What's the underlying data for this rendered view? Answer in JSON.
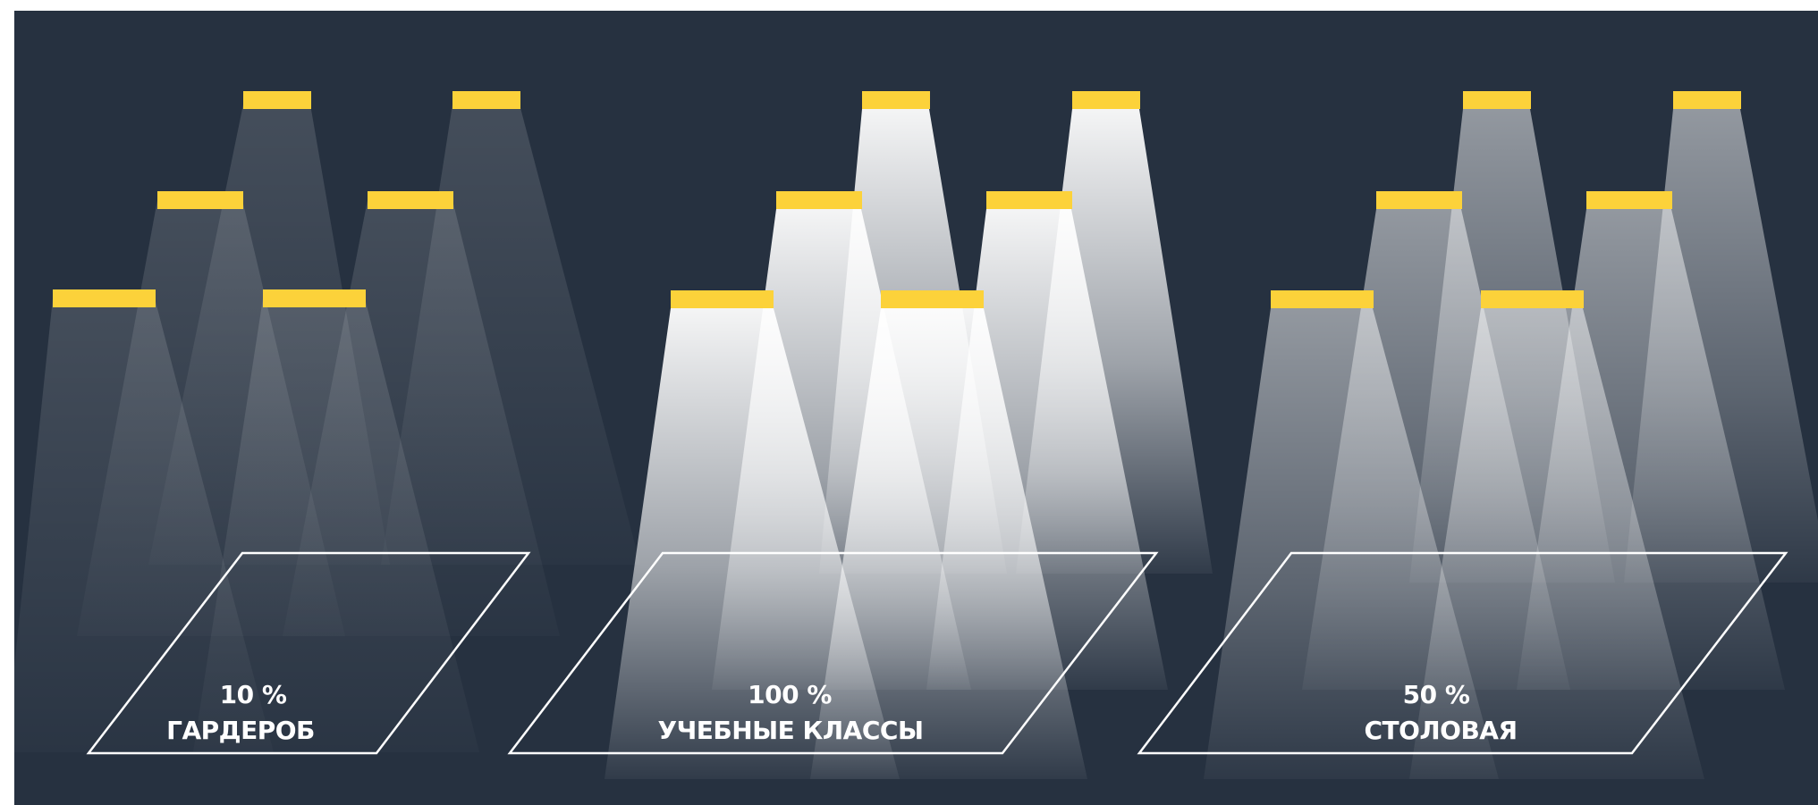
{
  "colors": {
    "background": "#263140",
    "lamp": "#FCD23A",
    "floor_outline": "#ffffff",
    "beam": "#ffffff"
  },
  "zones": [
    {
      "id": "gardrob",
      "percent_label": "10 %",
      "name": "ГАРДЕРОБ",
      "brightness": 0.1
    },
    {
      "id": "classes",
      "percent_label": "100 %",
      "name": "УЧЕБНЫЕ КЛАССЫ",
      "brightness": 1.0
    },
    {
      "id": "stolovaya",
      "percent_label": "50 %",
      "name": "СТОЛОВАЯ",
      "brightness": 0.5
    }
  ]
}
